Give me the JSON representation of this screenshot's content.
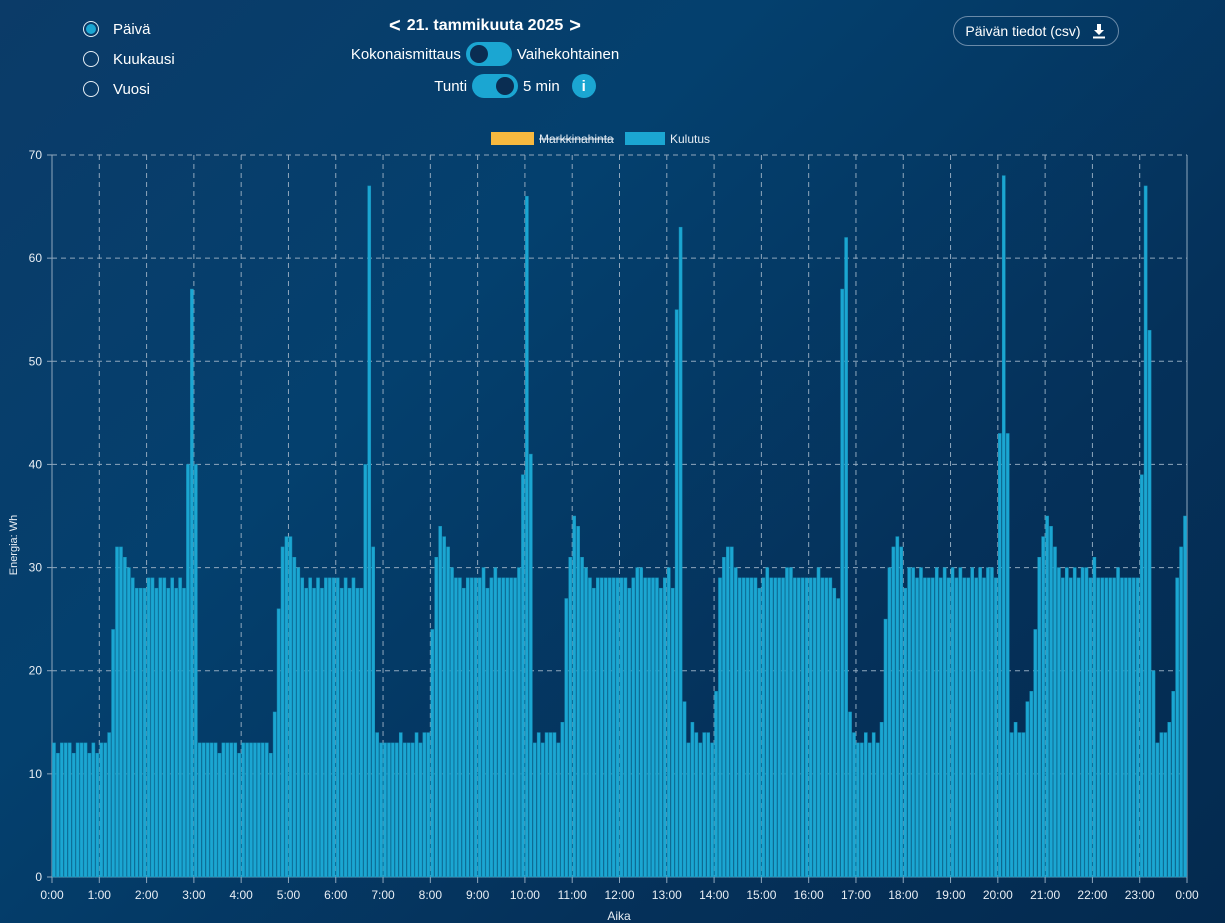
{
  "view_options": [
    {
      "label": "Päivä",
      "selected": true
    },
    {
      "label": "Kuukausi",
      "selected": false
    },
    {
      "label": "Vuosi",
      "selected": false
    }
  ],
  "date_nav": {
    "prev": "<",
    "date": "21. tammikuuta 2025",
    "next": ">"
  },
  "measurement_toggle": {
    "left_label": "Kokonaismittaus",
    "right_label": "Vaihekohtainen",
    "state": "left"
  },
  "interval_toggle": {
    "left_label": "Tunti",
    "right_label": "5 min",
    "state": "right"
  },
  "info_button": "i",
  "csv_button": {
    "label": "Päivän tiedot (csv)",
    "icon": "download-icon"
  },
  "colors": {
    "bar": "#1ba6d2",
    "legend_price": "#f7b93f",
    "grid": "#8fa7bd"
  },
  "chart_data": {
    "type": "bar",
    "title": "",
    "xlabel": "Aika",
    "ylabel": "Energia: Wh",
    "ylim": [
      0,
      70
    ],
    "yticks": [
      0,
      10,
      20,
      30,
      40,
      50,
      60,
      70
    ],
    "xticks": [
      "0:00",
      "1:00",
      "2:00",
      "3:00",
      "4:00",
      "5:00",
      "6:00",
      "7:00",
      "8:00",
      "9:00",
      "10:00",
      "11:00",
      "12:00",
      "13:00",
      "14:00",
      "15:00",
      "16:00",
      "17:00",
      "18:00",
      "19:00",
      "20:00",
      "21:00",
      "22:00",
      "23:00",
      "0:00"
    ],
    "grid": true,
    "legend_position": "top-center",
    "legend": [
      {
        "name": "Markkinahinta",
        "color": "#f7b93f",
        "hidden": true
      },
      {
        "name": "Kulutus",
        "color": "#1ba6d2",
        "hidden": false
      }
    ],
    "interval": "5 min",
    "series": [
      {
        "name": "Kulutus",
        "values": [
          13,
          12,
          13,
          13,
          13,
          12,
          13,
          13,
          13,
          12,
          13,
          12,
          13,
          13,
          14,
          24,
          32,
          32,
          31,
          30,
          29,
          28,
          28,
          28,
          29,
          29,
          28,
          29,
          29,
          28,
          29,
          28,
          29,
          28,
          40,
          57,
          40,
          13,
          13,
          13,
          13,
          13,
          12,
          13,
          13,
          13,
          13,
          12,
          13,
          13,
          13,
          13,
          13,
          13,
          13,
          12,
          16,
          26,
          32,
          33,
          33,
          31,
          30,
          29,
          28,
          29,
          28,
          29,
          28,
          29,
          29,
          29,
          29,
          28,
          29,
          28,
          29,
          28,
          28,
          40,
          67,
          32,
          14,
          13,
          13,
          13,
          13,
          13,
          14,
          13,
          13,
          13,
          14,
          13,
          14,
          14,
          24,
          31,
          34,
          33,
          32,
          30,
          29,
          29,
          28,
          29,
          29,
          29,
          29,
          30,
          28,
          29,
          30,
          29,
          29,
          29,
          29,
          29,
          30,
          39,
          66,
          41,
          13,
          14,
          13,
          14,
          14,
          14,
          13,
          15,
          27,
          31,
          35,
          34,
          31,
          30,
          29,
          28,
          29,
          29,
          29,
          29,
          29,
          29,
          29,
          29,
          28,
          29,
          30,
          30,
          29,
          29,
          29,
          29,
          28,
          29,
          30,
          28,
          55,
          63,
          17,
          13,
          15,
          14,
          13,
          14,
          14,
          13,
          18,
          29,
          31,
          32,
          32,
          30,
          29,
          29,
          29,
          29,
          29,
          28,
          29,
          30,
          29,
          29,
          29,
          29,
          30,
          30,
          29,
          29,
          29,
          29,
          29,
          29,
          30,
          29,
          29,
          29,
          28,
          27,
          57,
          62,
          16,
          14,
          13,
          13,
          14,
          13,
          14,
          13,
          15,
          25,
          30,
          32,
          33,
          32,
          28,
          30,
          30,
          29,
          30,
          29,
          29,
          29,
          30,
          29,
          30,
          29,
          30,
          29,
          30,
          29,
          29,
          30,
          29,
          30,
          29,
          30,
          30,
          29,
          43,
          68,
          43,
          14,
          15,
          14,
          14,
          17,
          18,
          24,
          31,
          33,
          35,
          34,
          32,
          30,
          29,
          30,
          29,
          30,
          29,
          30,
          30,
          29,
          31,
          29,
          29,
          29,
          29,
          29,
          30,
          29,
          29,
          29,
          29,
          29,
          39,
          67,
          53,
          20,
          13,
          14,
          14,
          15,
          18,
          29,
          32,
          35
        ]
      }
    ]
  }
}
